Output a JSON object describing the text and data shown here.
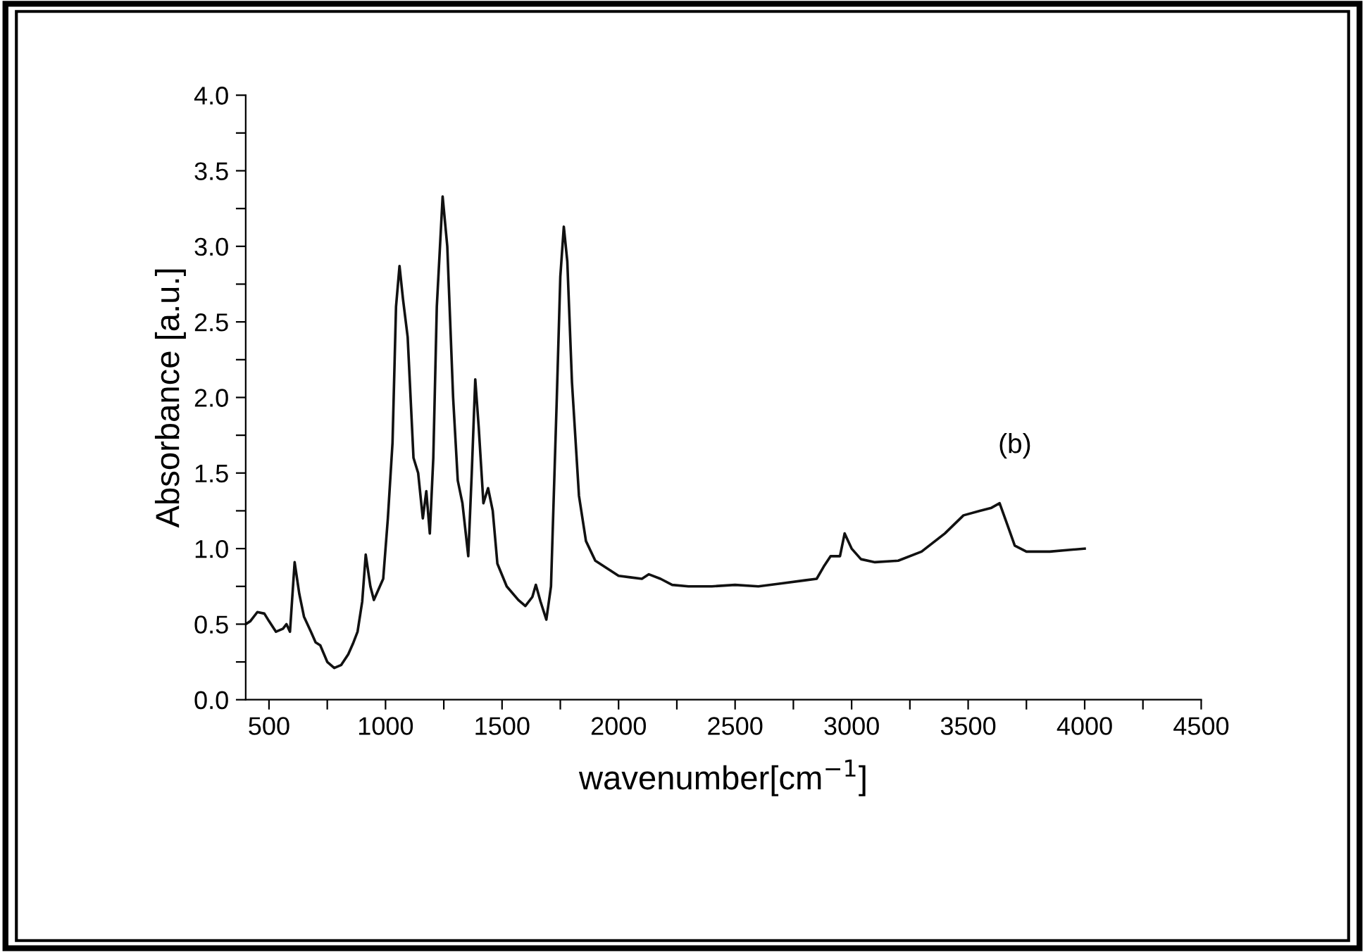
{
  "chart_data": {
    "type": "line",
    "xlabel": "wavenumber[cm$^{−1}$]",
    "ylabel": "Absorbance [a.u.]",
    "annotations": [
      "(b)"
    ],
    "xlim": [
      400,
      4500
    ],
    "ylim": [
      0,
      4.0
    ],
    "xticks": [
      500,
      {
        "value": 750,
        "label": null
      },
      1000,
      {
        "value": 1250,
        "label": null
      },
      1500,
      {
        "value": 1750,
        "label": null
      },
      2000,
      {
        "value": 2250,
        "label": null
      },
      2500,
      {
        "value": 2750,
        "label": null
      },
      3000,
      {
        "value": 3250,
        "label": null
      },
      3500,
      {
        "value": 3750,
        "label": null
      },
      4000,
      {
        "value": 4250,
        "label": null
      },
      4500
    ],
    "yticks": [
      {
        "value": 0,
        "label": "0.0"
      },
      {
        "value": 0.25,
        "label": null
      },
      {
        "value": 0.5,
        "label": "0.5"
      },
      {
        "value": 0.75,
        "label": null
      },
      {
        "value": 1.0,
        "label": "1.0"
      },
      {
        "value": 1.25,
        "label": null
      },
      {
        "value": 1.5,
        "label": "1.5"
      },
      {
        "value": 1.75,
        "label": null
      },
      {
        "value": 2.0,
        "label": "2.0"
      },
      {
        "value": 2.25,
        "label": null
      },
      {
        "value": 2.5,
        "label": "2.5"
      },
      {
        "value": 2.75,
        "label": null
      },
      {
        "value": 3.0,
        "label": "3.0"
      },
      {
        "value": 3.25,
        "label": null
      },
      {
        "value": 3.5,
        "label": "3.5"
      },
      {
        "value": 3.75,
        "label": null
      },
      {
        "value": 4.0,
        "label": "4.0"
      }
    ],
    "grid": false,
    "legend": false,
    "marker": "none",
    "line_style": "solid",
    "series": [
      {
        "color": "#111111",
        "x": [
          400,
          420,
          450,
          480,
          500,
          530,
          560,
          575,
          590,
          610,
          630,
          650,
          680,
          700,
          720,
          750,
          780,
          810,
          840,
          860,
          880,
          900,
          915,
          935,
          950,
          970,
          990,
          1010,
          1030,
          1045,
          1060,
          1075,
          1095,
          1120,
          1140,
          1160,
          1175,
          1190,
          1205,
          1220,
          1245,
          1265,
          1290,
          1310,
          1330,
          1355,
          1370,
          1385,
          1400,
          1420,
          1440,
          1460,
          1480,
          1520,
          1570,
          1600,
          1630,
          1645,
          1665,
          1690,
          1710,
          1735,
          1750,
          1765,
          1780,
          1800,
          1830,
          1860,
          1900,
          1950,
          2000,
          2050,
          2100,
          2130,
          2180,
          2230,
          2300,
          2400,
          2500,
          2600,
          2700,
          2800,
          2850,
          2880,
          2910,
          2950,
          2970,
          3000,
          3040,
          3100,
          3200,
          3300,
          3400,
          3480,
          3550,
          3600,
          3635,
          3670,
          3700,
          3750,
          3850,
          4000
        ],
        "values": [
          0.5,
          0.52,
          0.58,
          0.57,
          0.52,
          0.45,
          0.47,
          0.5,
          0.45,
          0.91,
          0.7,
          0.55,
          0.45,
          0.38,
          0.36,
          0.25,
          0.21,
          0.23,
          0.3,
          0.37,
          0.45,
          0.65,
          0.96,
          0.75,
          0.66,
          0.73,
          0.8,
          1.2,
          1.7,
          2.6,
          2.87,
          2.65,
          2.4,
          1.6,
          1.5,
          1.2,
          1.38,
          1.1,
          1.6,
          2.6,
          3.33,
          3.0,
          2.0,
          1.45,
          1.3,
          0.95,
          1.5,
          2.12,
          1.8,
          1.3,
          1.4,
          1.25,
          0.9,
          0.75,
          0.66,
          0.62,
          0.68,
          0.76,
          0.65,
          0.53,
          0.75,
          2.0,
          2.8,
          3.13,
          2.9,
          2.1,
          1.35,
          1.05,
          0.92,
          0.87,
          0.82,
          0.81,
          0.8,
          0.83,
          0.8,
          0.76,
          0.75,
          0.75,
          0.76,
          0.75,
          0.77,
          0.79,
          0.8,
          0.88,
          0.95,
          0.95,
          1.1,
          1.0,
          0.93,
          0.91,
          0.92,
          0.98,
          1.1,
          1.22,
          1.25,
          1.27,
          1.3,
          1.15,
          1.02,
          0.98,
          0.98,
          1.0
        ]
      }
    ]
  }
}
